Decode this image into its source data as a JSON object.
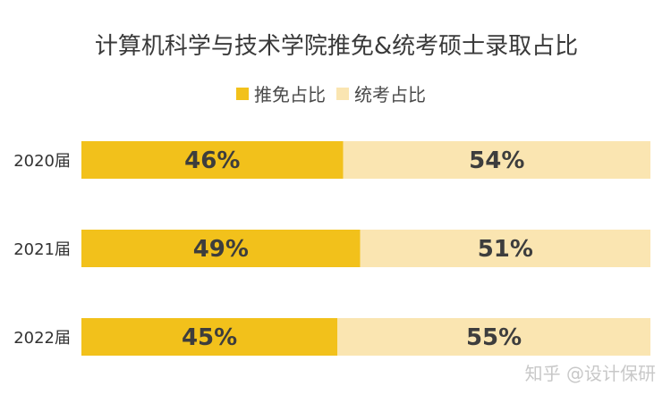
{
  "chart_data": {
    "type": "bar",
    "orientation": "horizontal",
    "stacked": true,
    "title": "计算机科学与技术学院推免&统考硕士录取占比",
    "categories": [
      "2020届",
      "2021届",
      "2022届"
    ],
    "series": [
      {
        "name": "推免占比",
        "values": [
          46,
          49,
          45
        ],
        "color": "#f2c11b"
      },
      {
        "name": "统考占比",
        "values": [
          54,
          51,
          55
        ],
        "color": "#fae5b1"
      }
    ],
    "value_labels": [
      [
        "46%",
        "49%",
        "45%"
      ],
      [
        "54%",
        "51%",
        "55%"
      ]
    ],
    "xlim": [
      0,
      100
    ],
    "grid": false,
    "legend_position": "top-center"
  },
  "watermark": "知乎 @设计保研"
}
